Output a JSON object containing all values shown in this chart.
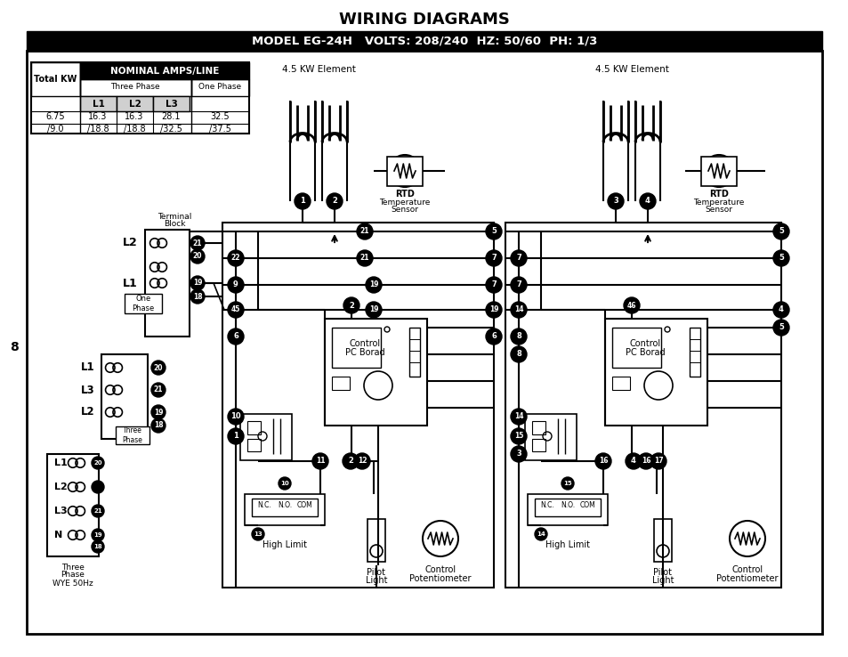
{
  "title": "WIRING DIAGRAMS",
  "subtitle": "MODEL EG-24H   VOLTS: 208/240  HZ: 50/60  PH: 1/3",
  "bg_color": "#ffffff",
  "page_number": "8",
  "table_header": "NOMINAL AMPS/LINE",
  "table_col1": "Total KW",
  "table_sub1": "Three Phase",
  "table_sub2": "One Phase",
  "table_phases": [
    "L1",
    "L2",
    "L3"
  ],
  "table_rows": [
    [
      "6.75",
      "16.3",
      "16.3",
      "28.1",
      "32.5"
    ],
    [
      "/9.0",
      "/18.8",
      "/18.8",
      "/32.5",
      "/37.5"
    ]
  ],
  "kw_label": "4.5 KW Element",
  "rtd_line1": "RTD",
  "rtd_line2": "Temperature",
  "rtd_line3": "Sensor",
  "tb_label1": "Terminal",
  "tb_label2": "Block",
  "cp_label1": "Control",
  "cp_label2": "PC Borad",
  "hl_label": "High Limit",
  "pl_label1": "Pilot",
  "pl_label2": "Light",
  "pot_label1": "Control",
  "pot_label2": "Potentiometer",
  "one_phase": "One\nPhase",
  "three_phase": "Three\nPhase",
  "three_phase_wye": "Three\nPhase\nWYE 50Hz"
}
